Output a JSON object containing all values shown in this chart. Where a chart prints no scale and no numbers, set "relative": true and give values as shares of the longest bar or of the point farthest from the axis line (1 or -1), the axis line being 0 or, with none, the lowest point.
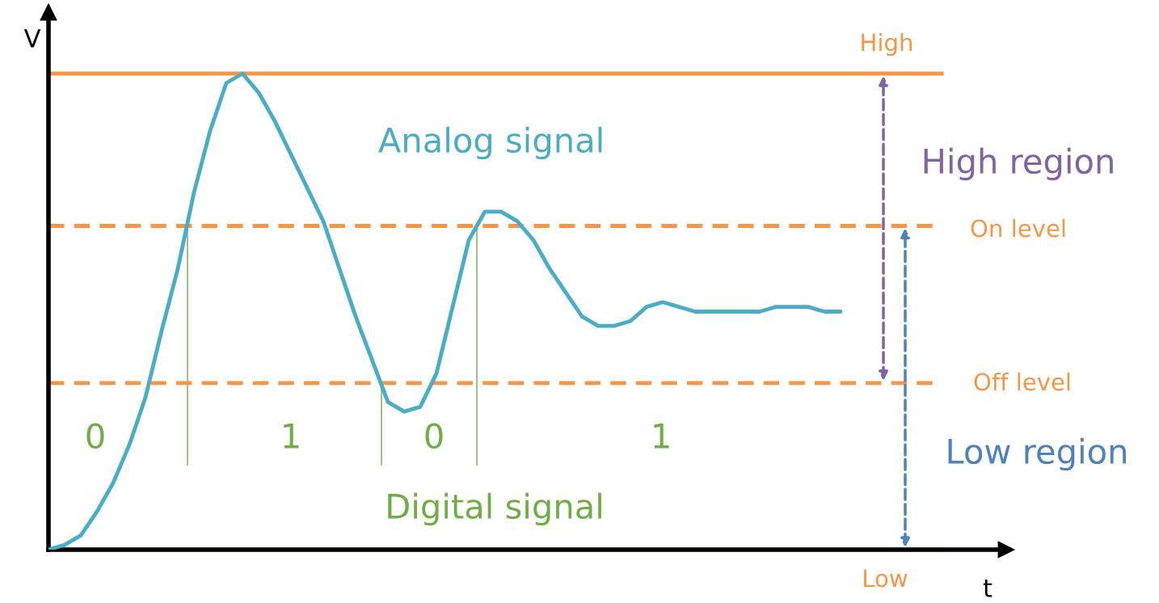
{
  "chart_data": {
    "type": "line",
    "relative": true,
    "ylabel": "V",
    "categories": [
      null,
      null,
      null,
      null,
      null,
      null,
      null,
      null,
      null,
      null,
      null,
      null,
      null,
      null,
      null,
      null,
      null,
      null,
      null,
      null,
      null,
      null,
      null,
      null,
      null,
      null,
      null,
      null,
      null,
      null,
      null,
      null,
      null,
      null,
      null,
      null,
      null,
      null,
      null,
      null,
      null,
      null,
      null,
      null,
      null,
      null,
      null,
      null,
      null,
      null
    ],
    "series": [
      {
        "color": "#4bacc6",
        "values": [
          0,
          0.01,
          0.03,
          0.08,
          0.14,
          0.22,
          0.32,
          0.46,
          0.59,
          0.75,
          0.88,
          0.98,
          1.0,
          0.96,
          0.9,
          0.83,
          0.76,
          0.69,
          0.59,
          0.49,
          0.4,
          0.31,
          0.29,
          0.3,
          0.37,
          0.51,
          0.65,
          0.71,
          0.71,
          0.69,
          0.65,
          0.59,
          0.54,
          0.49,
          0.47,
          0.47,
          0.48,
          0.51,
          0.52,
          0.51,
          0.5,
          0.5,
          0.5,
          0.5,
          0.5,
          0.51,
          0.51,
          0.51,
          0.5,
          0.5
        ]
      }
    ],
    "ref_lines": [
      {
        "axis": "y",
        "value": 1.0,
        "label": "High",
        "color": "#f79646",
        "line_style": "solid"
      },
      {
        "axis": "y",
        "value": 0.68,
        "label": "On level",
        "color": "#f79646",
        "line_style": "dashed"
      },
      {
        "axis": "y",
        "value": 0.35,
        "label": "Off level",
        "color": "#f79646",
        "line_style": "dashed"
      },
      {
        "axis": "y",
        "value": 0,
        "label": "Low",
        "color": "#f79646",
        "line_style": "solid"
      }
    ],
    "annotations": [
      "Analog signal",
      "High region",
      "Low region",
      "0",
      "1",
      "0",
      "1",
      "Digital signal",
      "t"
    ]
  }
}
